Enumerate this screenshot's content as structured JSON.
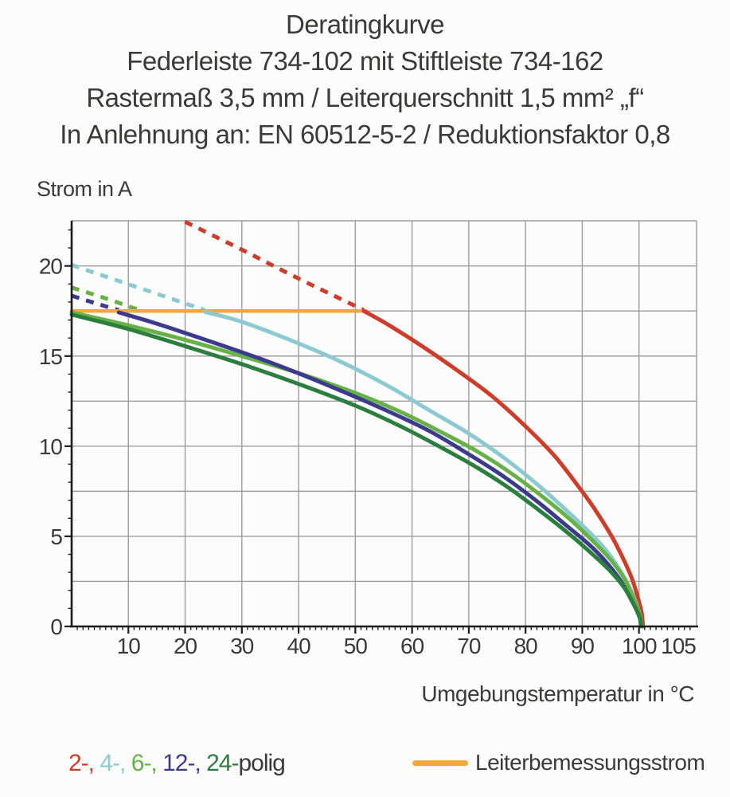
{
  "title": {
    "line1": "Deratingkurve",
    "line2": "Federleiste 734-102 mit Stiftleiste 734-162",
    "line3": "Rastermaß 3,5 mm / Leiterquerschnitt 1,5 mm² „f“",
    "line4": "In Anlehnung an: EN 60512-5-2 / Reduktionsfaktor 0,8"
  },
  "chart_data": {
    "type": "line",
    "title": "Deratingkurve",
    "xlabel": "Umgebungstemperatur in °C",
    "ylabel": "Strom in A",
    "xlim": [
      0,
      110
    ],
    "ylim": [
      0,
      22.5
    ],
    "x_ticks": [
      10,
      20,
      30,
      40,
      50,
      60,
      70,
      80,
      90,
      100,
      105
    ],
    "y_ticks": [
      0,
      5,
      10,
      15,
      20
    ],
    "x_gridlines": [
      10,
      20,
      30,
      40,
      50,
      60,
      70,
      80,
      90,
      100
    ],
    "y_gridlines": [
      2.5,
      5,
      7.5,
      10,
      12.5,
      15,
      17.5,
      20
    ],
    "grid": true,
    "grid_color": "#9c9c9c",
    "axis_color": "#1c1c1c",
    "label_color": "#39393a",
    "legend_position": "bottom",
    "reference_line": {
      "label": "Leiterbemessungsstrom",
      "y": 17.5,
      "x_range": [
        0,
        52
      ],
      "color": "#f2a73d"
    },
    "series": [
      {
        "name": "2-polig",
        "color": "#cf3c28",
        "dashed": [
          [
            20,
            22.45
          ],
          [
            30,
            20.9
          ],
          [
            40,
            19.3
          ],
          [
            51.5,
            17.55
          ]
        ],
        "solid": [
          [
            51.5,
            17.5
          ],
          [
            56,
            16.7
          ],
          [
            62,
            15.5
          ],
          [
            68,
            14.2
          ],
          [
            74,
            12.8
          ],
          [
            80,
            11.1
          ],
          [
            85,
            9.5
          ],
          [
            89,
            7.9
          ],
          [
            92,
            6.6
          ],
          [
            95,
            5.1
          ],
          [
            97,
            3.9
          ],
          [
            98.7,
            2.7
          ],
          [
            99.8,
            1.6
          ],
          [
            100.5,
            0.7
          ],
          [
            100.7,
            0
          ]
        ]
      },
      {
        "name": "4-polig",
        "color": "#8ccad2",
        "dashed": [
          [
            0,
            20.05
          ],
          [
            8,
            19.2
          ],
          [
            16,
            18.35
          ],
          [
            23.5,
            17.55
          ]
        ],
        "solid": [
          [
            23.5,
            17.45
          ],
          [
            30,
            16.9
          ],
          [
            40,
            15.7
          ],
          [
            48,
            14.6
          ],
          [
            56,
            13.3
          ],
          [
            63,
            12.0
          ],
          [
            70,
            10.7
          ],
          [
            76,
            9.4
          ],
          [
            82,
            7.9
          ],
          [
            87,
            6.5
          ],
          [
            91,
            5.3
          ],
          [
            94,
            4.3
          ],
          [
            96.5,
            3.2
          ],
          [
            98.3,
            2.2
          ],
          [
            99.7,
            1.1
          ],
          [
            100.5,
            0
          ]
        ]
      },
      {
        "name": "6-polig",
        "color": "#67b246",
        "dashed": [
          [
            0,
            18.8
          ],
          [
            6,
            18.2
          ],
          [
            11.5,
            17.6
          ]
        ],
        "solid": [
          [
            0,
            17.42
          ],
          [
            10,
            16.7
          ],
          [
            20,
            15.9
          ],
          [
            30,
            15.0
          ],
          [
            40,
            14.05
          ],
          [
            50,
            12.95
          ],
          [
            58,
            11.9
          ],
          [
            65,
            10.8
          ],
          [
            71,
            9.8
          ],
          [
            77,
            8.6
          ],
          [
            83,
            7.2
          ],
          [
            88,
            5.9
          ],
          [
            92,
            4.7
          ],
          [
            95,
            3.7
          ],
          [
            97.3,
            2.7
          ],
          [
            99,
            1.6
          ],
          [
            100.1,
            0.7
          ],
          [
            100.5,
            0
          ]
        ]
      },
      {
        "name": "12-polig",
        "color": "#3b3a8c",
        "dashed": [
          [
            0,
            18.35
          ],
          [
            4,
            17.95
          ],
          [
            8.3,
            17.55
          ]
        ],
        "solid": [
          [
            8.3,
            17.42
          ],
          [
            15,
            16.8
          ],
          [
            25,
            15.75
          ],
          [
            35,
            14.65
          ],
          [
            45,
            13.4
          ],
          [
            55,
            12.05
          ],
          [
            63,
            10.85
          ],
          [
            70,
            9.55
          ],
          [
            76,
            8.35
          ],
          [
            82,
            6.95
          ],
          [
            87,
            5.65
          ],
          [
            91,
            4.6
          ],
          [
            94,
            3.65
          ],
          [
            96.6,
            2.6
          ],
          [
            98.6,
            1.5
          ],
          [
            100,
            0.6
          ],
          [
            100.4,
            0
          ]
        ]
      },
      {
        "name": "24-polig",
        "color": "#2c7e3e",
        "dashed": [],
        "solid": [
          [
            0,
            17.3
          ],
          [
            10,
            16.5
          ],
          [
            20,
            15.55
          ],
          [
            30,
            14.55
          ],
          [
            40,
            13.45
          ],
          [
            50,
            12.25
          ],
          [
            58,
            11.1
          ],
          [
            65,
            9.95
          ],
          [
            71,
            8.9
          ],
          [
            77,
            7.7
          ],
          [
            83,
            6.3
          ],
          [
            88,
            5.05
          ],
          [
            92,
            3.95
          ],
          [
            95,
            3.05
          ],
          [
            97.4,
            2.15
          ],
          [
            99.1,
            1.2
          ],
          [
            100.1,
            0.5
          ],
          [
            100.4,
            0
          ]
        ]
      }
    ]
  },
  "legend": {
    "items": [
      {
        "label": "2-,",
        "color": "#cf3c28"
      },
      {
        "label": "4-,",
        "color": "#8ccad2"
      },
      {
        "label": "6-,",
        "color": "#67b246"
      },
      {
        "label": "12-,",
        "color": "#3b3a8c"
      },
      {
        "label": "24-",
        "color": "#2c7e3e"
      }
    ],
    "suffix": "polig",
    "reference_label": "Leiterbemessungsstrom",
    "reference_color": "#f2a73d"
  }
}
